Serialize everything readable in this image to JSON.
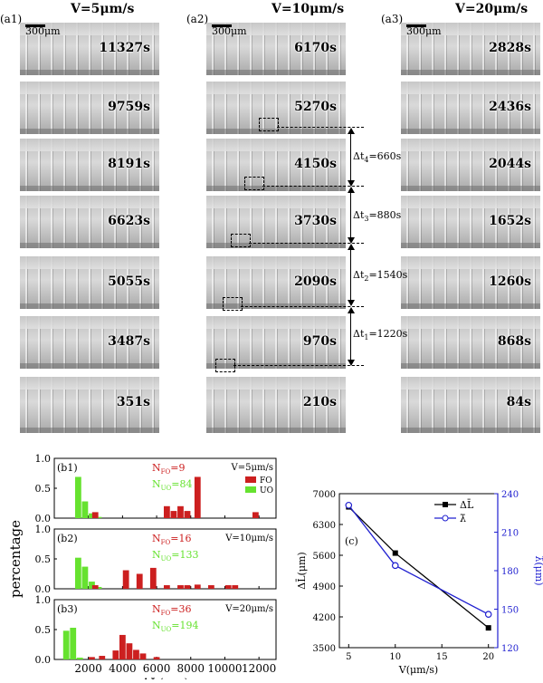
{
  "columns": [
    {
      "id": "(a1)",
      "title": "V=5μm/s",
      "scale_label": "300μm",
      "times": [
        "11327s",
        "9759s",
        "8191s",
        "6623s",
        "5055s",
        "3487s",
        "351s"
      ]
    },
    {
      "id": "(a2)",
      "title": "V=10μm/s",
      "scale_label": "300μm",
      "times": [
        "6170s",
        "5270s",
        "4150s",
        "3730s",
        "2090s",
        "970s",
        "210s"
      ]
    },
    {
      "id": "(a3)",
      "title": "V=20μm/s",
      "scale_label": "300μm",
      "times": [
        "2828s",
        "2436s",
        "2044s",
        "1652s",
        "1260s",
        "868s",
        "84s"
      ]
    }
  ],
  "intervals": [
    {
      "label": "Δt",
      "index": "4",
      "value": "=660s"
    },
    {
      "label": "Δt",
      "index": "3",
      "value": "=880s"
    },
    {
      "label": "Δt",
      "index": "2",
      "value": "=1540s"
    },
    {
      "label": "Δt",
      "index": "1",
      "value": "=1220s"
    }
  ],
  "colors": {
    "fo": "#cc1f1f",
    "uo": "#66e22f",
    "line_black": "#000000",
    "line_blue": "#2020d0"
  },
  "chart_data": [
    {
      "type": "bar",
      "group": "histograms",
      "ylabel": "percentage",
      "xlabel": "ΔL(μm)",
      "xlim": [
        0,
        13000
      ],
      "xticks": [
        2000,
        4000,
        6000,
        8000,
        10000,
        12000
      ],
      "ylim": [
        0,
        1.0
      ],
      "yticks": [
        "0.0",
        "0.5",
        "1.0"
      ],
      "legend": {
        "fo": "FO",
        "uo": "UO"
      },
      "panels": [
        {
          "id": "(b1)",
          "condition": "V=5μm/s",
          "nfo": "=9",
          "nuo": "=84",
          "show_legend": true,
          "uo": [
            [
              1400,
              0.69
            ],
            [
              1800,
              0.28
            ],
            [
              2200,
              0.08
            ],
            [
              2600,
              0.02
            ]
          ],
          "fo": [
            [
              2400,
              0.1
            ],
            [
              6600,
              0.2
            ],
            [
              7000,
              0.12
            ],
            [
              7400,
              0.2
            ],
            [
              7800,
              0.12
            ],
            [
              8400,
              0.69
            ],
            [
              11800,
              0.1
            ]
          ]
        },
        {
          "id": "(b2)",
          "condition": "V=10μm/s",
          "nfo": "=16",
          "nuo": "=133",
          "show_legend": false,
          "uo": [
            [
              1400,
              0.52
            ],
            [
              1800,
              0.37
            ],
            [
              2200,
              0.12
            ],
            [
              2600,
              0.03
            ]
          ],
          "fo": [
            [
              2400,
              0.06
            ],
            [
              4200,
              0.31
            ],
            [
              5000,
              0.25
            ],
            [
              5800,
              0.35
            ],
            [
              6600,
              0.06
            ],
            [
              7400,
              0.06
            ],
            [
              7800,
              0.06
            ],
            [
              8400,
              0.07
            ],
            [
              9200,
              0.06
            ],
            [
              10200,
              0.06
            ],
            [
              10600,
              0.06
            ]
          ]
        },
        {
          "id": "(b3)",
          "condition": "V=20μm/s",
          "nfo": "=36",
          "nuo": "=194",
          "show_legend": false,
          "uo": [
            [
              700,
              0.48
            ],
            [
              1100,
              0.53
            ],
            [
              1500,
              0.03
            ]
          ],
          "fo": [
            [
              2200,
              0.04
            ],
            [
              2800,
              0.06
            ],
            [
              3600,
              0.15
            ],
            [
              4000,
              0.41
            ],
            [
              4400,
              0.27
            ],
            [
              4800,
              0.16
            ],
            [
              5200,
              0.1
            ],
            [
              6000,
              0.04
            ]
          ]
        }
      ]
    },
    {
      "type": "line",
      "id": "(c)",
      "xlabel": "V(μm/s)",
      "ylabel_left": "ΔL̄(μm)",
      "ylabel_right": "λ̄(μm)",
      "xlim": [
        4,
        21
      ],
      "xticks": [
        5,
        10,
        15,
        20
      ],
      "ylim_left": [
        3500,
        7000
      ],
      "yticks_left": [
        3500,
        4200,
        4900,
        5600,
        6300,
        7000
      ],
      "ylim_right": [
        120,
        240
      ],
      "yticks_right": [
        120,
        150,
        180,
        210,
        240
      ],
      "series": [
        {
          "name": "ΔL̄",
          "axis": "left",
          "marker": "filled-square",
          "color": "#000000",
          "x": [
            5,
            10,
            20
          ],
          "y": [
            6700,
            5650,
            3950
          ]
        },
        {
          "name": "λ̄",
          "axis": "right",
          "marker": "open-circle",
          "color": "#2020d0",
          "x": [
            5,
            10,
            20
          ],
          "y": [
            231,
            184,
            146
          ]
        }
      ]
    }
  ]
}
